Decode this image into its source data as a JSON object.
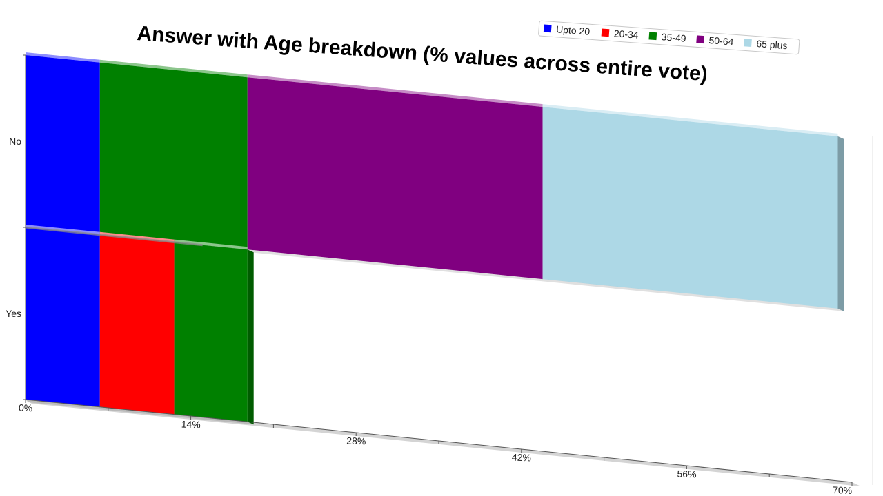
{
  "chart_data": {
    "type": "bar",
    "orientation": "horizontal",
    "stacked": true,
    "title": "Answer with Age breakdown (% values across entire vote)",
    "categories": [
      "No",
      "Yes"
    ],
    "series": [
      {
        "name": "Upto 20",
        "color": "#0000ff",
        "values": [
          6.3,
          6.3
        ]
      },
      {
        "name": "20-34",
        "color": "#ff0000",
        "values": [
          0,
          6.3
        ]
      },
      {
        "name": "35-49",
        "color": "#008000",
        "values": [
          12.5,
          6.2
        ]
      },
      {
        "name": "50-64",
        "color": "#800080",
        "values": [
          25.0,
          0
        ]
      },
      {
        "name": "65 plus",
        "color": "#add8e6",
        "values": [
          25.0,
          0
        ]
      }
    ],
    "xlim": [
      0,
      70
    ],
    "x_ticks": [
      "0%",
      "14%",
      "28%",
      "42%",
      "56%",
      "70%"
    ],
    "legend": "top-right",
    "grid": false
  }
}
